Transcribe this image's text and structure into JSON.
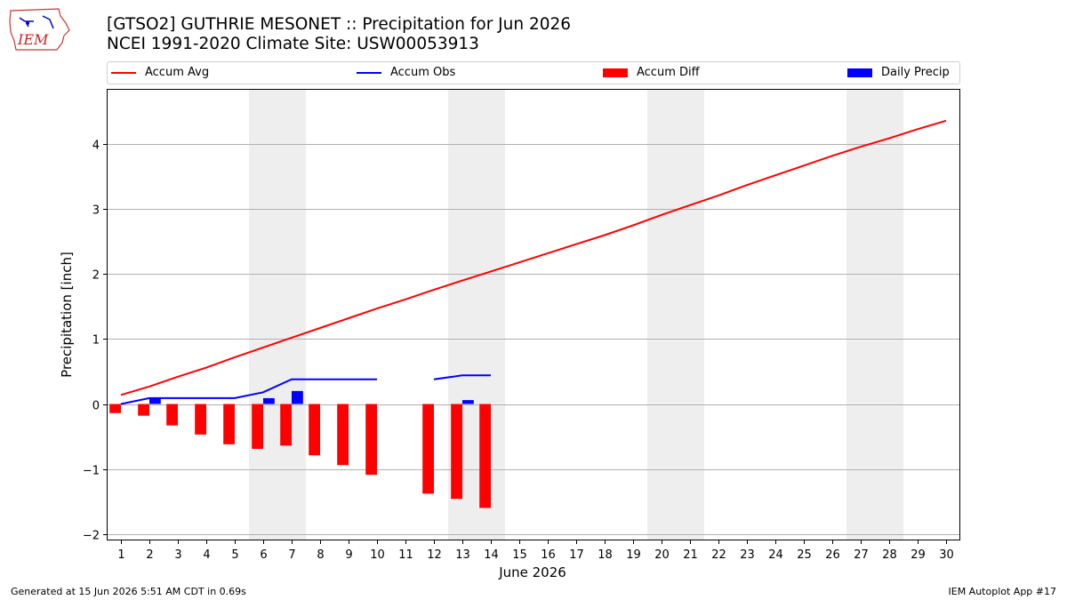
{
  "header": {
    "title_line1": "[GTSO2] GUTHRIE MESONET :: Precipitation for Jun 2026",
    "title_line2": "NCEI 1991-2020 Climate Site: USW00053913"
  },
  "logo": {
    "text": "IEM",
    "icon": "iowa-state-outline-logo"
  },
  "footer": {
    "left": "Generated at 15 Jun 2026 5:51 AM CDT in 0.69s",
    "right": "IEM Autoplot App #17"
  },
  "colors": {
    "avg": "#ff0000",
    "obs": "#0000ff",
    "diff": "#ff0000",
    "daily": "#0000ff",
    "weekend_shade": "#eeeeee",
    "grid": "#b0b0b0"
  },
  "chart_data": {
    "type": "line",
    "title": "[GTSO2] GUTHRIE MESONET :: Precipitation for Jun 2026",
    "subtitle": "NCEI 1991-2020 Climate Site: USW00053913",
    "xlabel": "June 2026",
    "ylabel": "Precipitation [inch]",
    "x": [
      1,
      2,
      3,
      4,
      5,
      6,
      7,
      8,
      9,
      10,
      11,
      12,
      13,
      14,
      15,
      16,
      17,
      18,
      19,
      20,
      21,
      22,
      23,
      24,
      25,
      26,
      27,
      28,
      29,
      30
    ],
    "xlim": [
      0.5,
      30.5
    ],
    "ylim": [
      -2.1,
      4.85
    ],
    "yticks": [
      -2,
      -1,
      0,
      1,
      2,
      3,
      4
    ],
    "ytick_labels": [
      "−2",
      "−1",
      "0",
      "1",
      "2",
      "3",
      "4"
    ],
    "grid": "horizontal",
    "legend_position": "top",
    "weekend_shading": [
      [
        5.5,
        7.5
      ],
      [
        12.5,
        14.5
      ],
      [
        19.5,
        21.5
      ],
      [
        26.5,
        28.5
      ]
    ],
    "series": [
      {
        "name": "Accum Avg",
        "kind": "line",
        "values": [
          0.14,
          0.27,
          0.42,
          0.56,
          0.72,
          0.87,
          1.02,
          1.17,
          1.32,
          1.47,
          1.61,
          1.76,
          1.9,
          2.04,
          2.18,
          2.32,
          2.46,
          2.6,
          2.75,
          2.91,
          3.06,
          3.21,
          3.37,
          3.52,
          3.67,
          3.82,
          3.96,
          4.09,
          4.23,
          4.36
        ]
      },
      {
        "name": "Accum Obs",
        "kind": "line",
        "values": [
          0.0,
          0.09,
          0.09,
          0.09,
          0.09,
          0.18,
          0.38,
          0.38,
          0.38,
          0.38,
          null,
          0.38,
          0.44,
          0.44,
          null,
          null,
          null,
          null,
          null,
          null,
          null,
          null,
          null,
          null,
          null,
          null,
          null,
          null,
          null,
          null
        ]
      },
      {
        "name": "Accum Diff",
        "kind": "bar",
        "offset": -0.2,
        "values": [
          -0.14,
          -0.18,
          -0.33,
          -0.47,
          -0.62,
          -0.69,
          -0.64,
          -0.79,
          -0.94,
          -1.09,
          null,
          -1.38,
          -1.46,
          -1.6,
          null,
          null,
          null,
          null,
          null,
          null,
          null,
          null,
          null,
          null,
          null,
          null,
          null,
          null,
          null,
          null
        ]
      },
      {
        "name": "Daily Precip",
        "kind": "bar",
        "offset": 0.2,
        "values": [
          0,
          0.09,
          0,
          0,
          0,
          0.09,
          0.2,
          0,
          0,
          0,
          null,
          0,
          0.06,
          0,
          null,
          null,
          null,
          null,
          null,
          null,
          null,
          null,
          null,
          null,
          null,
          null,
          null,
          null,
          null,
          null
        ]
      }
    ]
  }
}
